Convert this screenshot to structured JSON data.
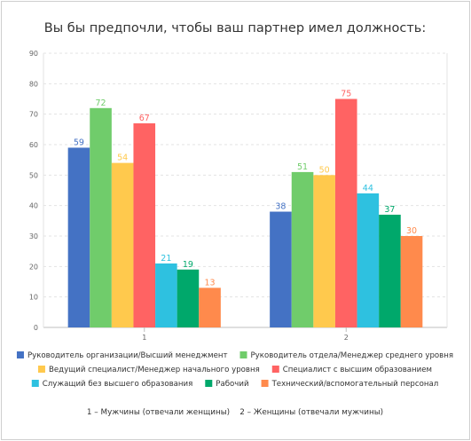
{
  "chart_data": {
    "type": "bar",
    "title": "Вы бы предпочли, чтобы ваш партнер имел должность:",
    "categories": [
      "1",
      "2"
    ],
    "ylim": [
      0,
      90
    ],
    "yticks": [
      0,
      10,
      20,
      30,
      40,
      50,
      60,
      70,
      80,
      90
    ],
    "grid": true,
    "legend_position": "bottom",
    "series": [
      {
        "name": "Руководитель организации/Высший менеджмент",
        "color": "#4472c4",
        "values": [
          59,
          38
        ]
      },
      {
        "name": "Руководитель отдела/Менеджер среднего уровня",
        "color": "#70cc6b",
        "values": [
          72,
          51
        ]
      },
      {
        "name": "Ведущий специалист/Менеджер начального уровня",
        "color": "#ffc94d",
        "values": [
          54,
          50
        ]
      },
      {
        "name": "Специалист с высшим образованием",
        "color": "#ff6363",
        "values": [
          67,
          75
        ]
      },
      {
        "name": "Служащий без высшего образования",
        "color": "#2ec1e0",
        "values": [
          21,
          44
        ]
      },
      {
        "name": "Рабочий",
        "color": "#00a86b",
        "values": [
          19,
          37
        ]
      },
      {
        "name": "Технический/вспомогательный персонал",
        "color": "#ff8a4c",
        "values": [
          13,
          30
        ]
      }
    ],
    "footnote": "1 – Мужчины (отвечали женщины)    2 – Женщины (отвечали мужчины)"
  }
}
